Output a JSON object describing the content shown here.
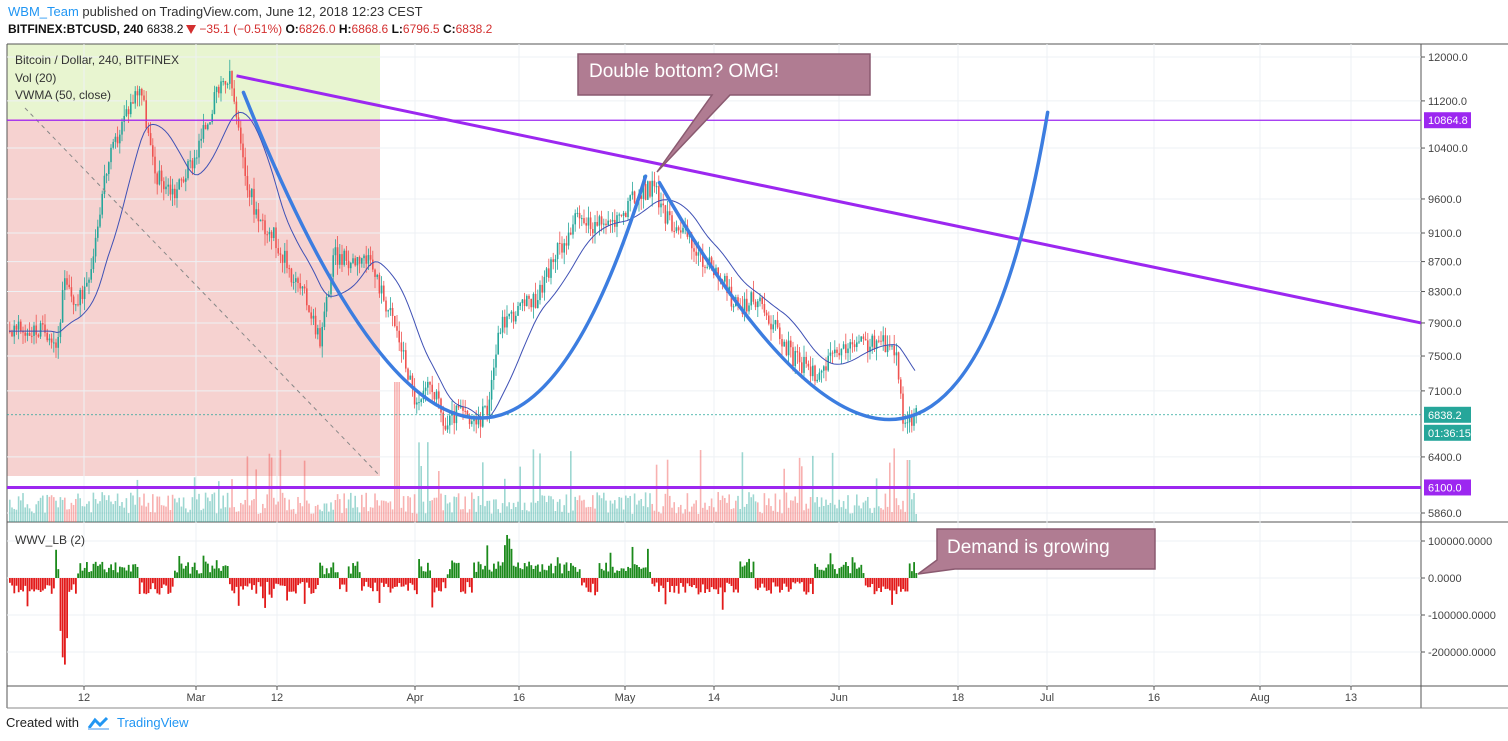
{
  "header": {
    "username": "WBM_Team",
    "published_text": " published on TradingView.com, June 12, 2018 12:23 CEST",
    "symbol_line_prefix": "BITFINEX:BTCUSD, 240 ",
    "last": "6838.2",
    "change": "−35.1 (−0.51%)",
    "o_label": "O:",
    "o_value": "6826.0",
    "h_label": "H:",
    "h_value": "6868.6",
    "l_label": "L:",
    "l_value": "6796.5",
    "c_label": "C:",
    "c_value": "6838.2"
  },
  "legend": {
    "title": "Bitcoin / Dollar, 240, BITFINEX",
    "vol": "Vol (20)",
    "vwma": "VWMA (50, close)",
    "indicator": "WWV_LB (2)"
  },
  "annotations": {
    "double_bottom": "Double bottom? OMG!",
    "demand": "Demand is growing"
  },
  "footer": {
    "created_with": "Created with",
    "brand": "TradingView"
  },
  "colors": {
    "up": "#26a69a",
    "down": "#ef5350",
    "vwma": "#3f51b5",
    "trend_purple": "#9c27f0",
    "curve_blue": "#3c7de0",
    "callout_fill": "#b07c92",
    "zone_green": "#e8f5d0",
    "zone_red": "#f6d2d0",
    "hist_up": "#1b8a1b",
    "hist_down": "#e31a1a"
  },
  "chart_data": [
    {
      "type": "candlestick",
      "title": "Bitcoin / Dollar, 240, BITFINEX",
      "x_ticks": [
        "12",
        "Mar",
        "12",
        "Apr",
        "16",
        "May",
        "14",
        "Jun",
        "18",
        "Jul",
        "16",
        "Aug",
        "13"
      ],
      "y_ticks": [
        12000.0,
        11200.0,
        10400.0,
        9600.0,
        9100.0,
        8700.0,
        8300.0,
        7900.0,
        7500.0,
        7100.0,
        6400.0,
        5860.0
      ],
      "y_tick_labels": [
        "12000.0",
        "11200.0",
        "10400.0",
        "9600.0",
        "9100.0",
        "8700.0",
        "8300.0",
        "7900.0",
        "7500.0",
        "7100.0",
        "6400.0",
        "5860.0"
      ],
      "y_scale": "log",
      "price_labels": [
        {
          "value": "10864.8",
          "color": "#9c27f0"
        },
        {
          "value": "6838.2",
          "color": "#26a69a"
        },
        {
          "value": "01:36:15",
          "color": "#26a69a"
        },
        {
          "value": "6100.0",
          "color": "#9c27f0"
        }
      ],
      "horizontal_levels": [
        10864.8,
        6100.0
      ],
      "price_path": [
        [
          "Feb 7",
          7800
        ],
        [
          "Feb 8",
          7600
        ],
        [
          "Feb 9",
          8400
        ],
        [
          "Feb 11",
          8100
        ],
        [
          "Feb 13",
          8700
        ],
        [
          "Feb 15",
          10000
        ],
        [
          "Feb 18",
          11000
        ],
        [
          "Feb 20",
          11500
        ],
        [
          "Feb 22",
          10000
        ],
        [
          "Feb 25",
          9700
        ],
        [
          "Feb 28",
          10300
        ],
        [
          "Mar 3",
          11300
        ],
        [
          "Mar 5",
          11600
        ],
        [
          "Mar 7",
          10000
        ],
        [
          "Mar 9",
          9300
        ],
        [
          "Mar 11",
          9100
        ],
        [
          "Mar 14",
          8500
        ],
        [
          "Mar 16",
          8200
        ],
        [
          "Mar 18",
          7700
        ],
        [
          "Mar 20",
          8800
        ],
        [
          "Mar 22",
          8700
        ],
        [
          "Mar 24",
          8800
        ],
        [
          "Mar 26",
          8500
        ],
        [
          "Mar 29",
          7800
        ],
        [
          "Apr 1",
          6900
        ],
        [
          "Apr 3",
          7200
        ],
        [
          "Apr 5",
          6700
        ],
        [
          "Apr 7",
          6900
        ],
        [
          "Apr 9",
          6700
        ],
        [
          "Apr 11",
          6900
        ],
        [
          "Apr 13",
          7900
        ],
        [
          "Apr 16",
          8100
        ],
        [
          "Apr 18",
          8200
        ],
        [
          "Apr 21",
          8800
        ],
        [
          "Apr 24",
          9300
        ],
        [
          "Apr 27",
          9200
        ],
        [
          "Apr 30",
          9300
        ],
        [
          "May 2",
          9600
        ],
        [
          "May 5",
          9800
        ],
        [
          "May 7",
          9300
        ],
        [
          "May 9",
          9200
        ],
        [
          "May 12",
          8700
        ],
        [
          "May 14",
          8600
        ],
        [
          "May 17",
          8100
        ],
        [
          "May 20",
          8200
        ],
        [
          "May 23",
          7800
        ],
        [
          "May 25",
          7500
        ],
        [
          "May 28",
          7300
        ],
        [
          "May 30",
          7400
        ],
        [
          "Jun 2",
          7600
        ],
        [
          "Jun 4",
          7650
        ],
        [
          "Jun 7",
          7650
        ],
        [
          "Jun 9",
          7600
        ],
        [
          "Jun 10",
          6800
        ],
        [
          "Jun 11",
          6750
        ],
        [
          "Jun 12",
          6838.2
        ]
      ],
      "trendlines": [
        {
          "name": "descending resistance",
          "from": [
            "Mar 6",
            11650
          ],
          "to": [
            "Aug 22",
            7900
          ]
        }
      ],
      "drawn_curves": [
        {
          "points": [
            [
              "Mar 7",
              11350
            ],
            [
              "Apr 8",
              6820
            ],
            [
              "May 4",
              9950
            ]
          ]
        },
        {
          "points": [
            [
              "May 6",
              9850
            ],
            [
              "Jun 10",
              6800
            ],
            [
              "Jul 1",
              11000
            ]
          ]
        }
      ],
      "volume": {
        "name": "Vol (20)",
        "max_bar": "Mar 29"
      }
    },
    {
      "type": "bar",
      "title": "WWV_LB (2)",
      "y_ticks": [
        100000,
        0,
        -100000,
        -200000
      ],
      "y_tick_labels": [
        "100000.0000",
        "0.0000",
        "-100000.0000",
        "-200000.0000"
      ],
      "extremes": [
        {
          "x": "Feb 9",
          "value": -260000
        },
        {
          "x": "Apr 14",
          "value": 125000
        }
      ]
    }
  ]
}
